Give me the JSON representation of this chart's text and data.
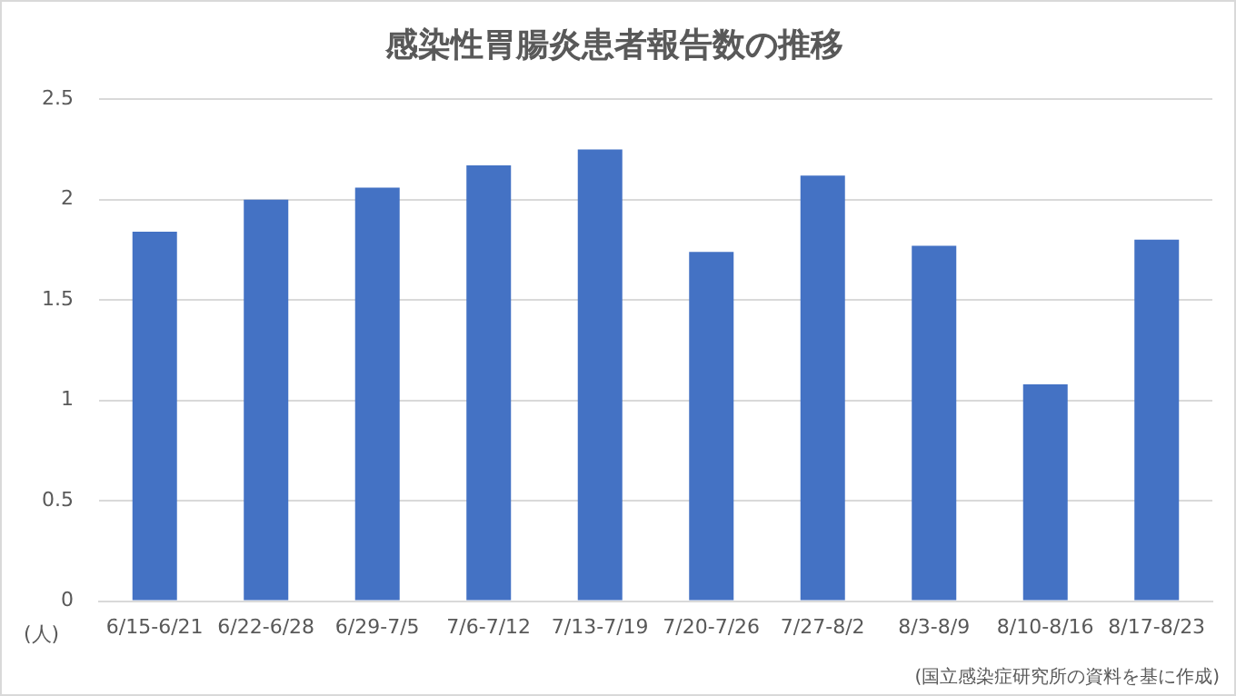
{
  "chart_data": {
    "type": "bar",
    "title": "感染性胃腸炎患者報告数の推移",
    "ylabel": "(人)",
    "categories": [
      "6/15-6/21",
      "6/22-6/28",
      "6/29-7/5",
      "7/6-7/12",
      "7/13-7/19",
      "7/20-7/26",
      "7/27-8/2",
      "8/3-8/9",
      "8/10-8/16",
      "8/17-8/23"
    ],
    "values": [
      1.84,
      2.0,
      2.06,
      2.17,
      2.25,
      1.74,
      2.12,
      1.77,
      1.08,
      1.8
    ],
    "color": "#4472c4",
    "ylim": [
      0,
      2.5
    ],
    "yticks": [
      0,
      0.5,
      1,
      1.5,
      2,
      2.5
    ],
    "grid": "y",
    "legend": false,
    "annotations": [
      "(国立感染症研究所の資料を基に作成)"
    ]
  }
}
